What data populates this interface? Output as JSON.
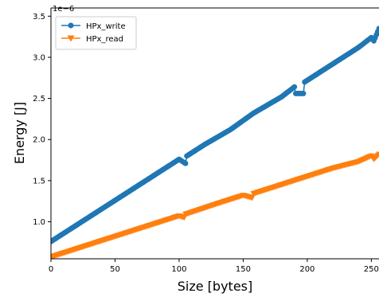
{
  "chart_data": {
    "type": "line",
    "xlabel": "Size [bytes]",
    "ylabel": "Energy [J]",
    "y_offset_label": "1e−6",
    "xlim": [
      0,
      256
    ],
    "ylim": [
      0.55,
      3.6
    ],
    "x_ticks": [
      {
        "value": 0,
        "label": "0"
      },
      {
        "value": 50,
        "label": "50"
      },
      {
        "value": 100,
        "label": "100"
      },
      {
        "value": 150,
        "label": "150"
      },
      {
        "value": 200,
        "label": "200"
      },
      {
        "value": 250,
        "label": "250"
      }
    ],
    "y_ticks": [
      {
        "value": 1.0,
        "label": "1.0"
      },
      {
        "value": 1.5,
        "label": "1.5"
      },
      {
        "value": 2.0,
        "label": "2.0"
      },
      {
        "value": 2.5,
        "label": "2.5"
      },
      {
        "value": 3.0,
        "label": "3.0"
      },
      {
        "value": 3.5,
        "label": "3.5"
      }
    ],
    "legend": {
      "placement": "upper-left"
    },
    "grid": false,
    "series": [
      {
        "name": "HPx_write",
        "color": "#1f77b4",
        "marker": "circle",
        "points": [
          [
            0,
            0.76
          ],
          [
            20,
            0.96
          ],
          [
            40,
            1.16
          ],
          [
            60,
            1.36
          ],
          [
            80,
            1.56
          ],
          [
            100,
            1.76
          ],
          [
            105,
            1.71
          ],
          [
            106,
            1.8
          ],
          [
            120,
            1.94
          ],
          [
            140,
            2.12
          ],
          [
            158,
            2.32
          ],
          [
            180,
            2.52
          ],
          [
            190,
            2.64
          ],
          [
            191,
            2.56
          ],
          [
            197,
            2.56
          ],
          [
            198,
            2.7
          ],
          [
            220,
            2.92
          ],
          [
            240,
            3.12
          ],
          [
            250,
            3.24
          ],
          [
            252,
            3.2
          ],
          [
            256,
            3.35
          ]
        ]
      },
      {
        "name": "HPx_read",
        "color": "#ff7f0e",
        "marker": "triangle-down",
        "points": [
          [
            0,
            0.57
          ],
          [
            20,
            0.67
          ],
          [
            40,
            0.77
          ],
          [
            60,
            0.87
          ],
          [
            80,
            0.97
          ],
          [
            100,
            1.07
          ],
          [
            104,
            1.05
          ],
          [
            105,
            1.09
          ],
          [
            130,
            1.22
          ],
          [
            150,
            1.32
          ],
          [
            157,
            1.29
          ],
          [
            158,
            1.34
          ],
          [
            180,
            1.45
          ],
          [
            200,
            1.55
          ],
          [
            220,
            1.65
          ],
          [
            240,
            1.73
          ],
          [
            250,
            1.8
          ],
          [
            252,
            1.76
          ],
          [
            256,
            1.82
          ]
        ]
      }
    ]
  }
}
